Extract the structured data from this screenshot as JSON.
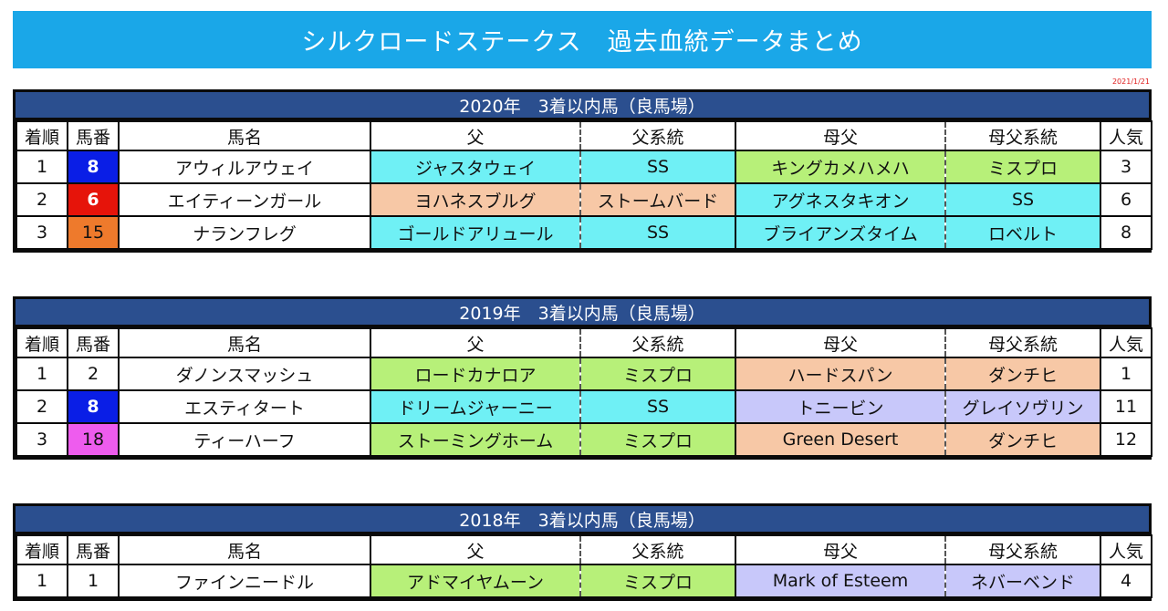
{
  "title": "シルクロードステークス　過去血統データまとめ",
  "date": "2021/1/21",
  "headers": [
    "着順",
    "馬番",
    "馬名",
    "父",
    "父系統",
    "母父",
    "母父系統",
    "人気"
  ],
  "blocks": [
    {
      "title": "2020年　3着以内馬（良馬場）",
      "rows": [
        {
          "rank": "1",
          "num": "8",
          "num_color": "blue",
          "name": "アウィルアウェイ",
          "sire": "ジャスタウェイ",
          "sire_line": "SS",
          "sire_color": "cyan",
          "dam_sire": "キングカメハメハ",
          "dam_sire_line": "ミスプロ",
          "dam_color": "green",
          "pop": "3"
        },
        {
          "rank": "2",
          "num": "6",
          "num_color": "red",
          "name": "エイティーンガール",
          "sire": "ヨハネスブルグ",
          "sire_line": "ストームバード",
          "sire_color": "peach",
          "dam_sire": "アグネスタキオン",
          "dam_sire_line": "SS",
          "dam_color": "cyan",
          "pop": "6"
        },
        {
          "rank": "3",
          "num": "15",
          "num_color": "orange",
          "name": "ナランフレグ",
          "sire": "ゴールドアリュール",
          "sire_line": "SS",
          "sire_color": "cyan",
          "dam_sire": "ブライアンズタイム",
          "dam_sire_line": "ロベルト",
          "dam_color": "cyan",
          "pop": "8"
        }
      ]
    },
    {
      "title": "2019年　3着以内馬（良馬場）",
      "rows": [
        {
          "rank": "1",
          "num": "2",
          "num_color": "white",
          "name": "ダノンスマッシュ",
          "sire": "ロードカナロア",
          "sire_line": "ミスプロ",
          "sire_color": "green",
          "dam_sire": "ハードスパン",
          "dam_sire_line": "ダンチヒ",
          "dam_color": "peach",
          "pop": "1"
        },
        {
          "rank": "2",
          "num": "8",
          "num_color": "blue",
          "name": "エスティタート",
          "sire": "ドリームジャーニー",
          "sire_line": "SS",
          "sire_color": "cyan",
          "dam_sire": "トニービン",
          "dam_sire_line": "グレイソヴリン",
          "dam_color": "lav",
          "pop": "11"
        },
        {
          "rank": "3",
          "num": "18",
          "num_color": "pink",
          "name": "ティーハーフ",
          "sire": "ストーミングホーム",
          "sire_line": "ミスプロ",
          "sire_color": "green",
          "dam_sire": "Green Desert",
          "dam_sire_line": "ダンチヒ",
          "dam_color": "peach",
          "pop": "12"
        }
      ]
    },
    {
      "title": "2018年　3着以内馬（良馬場）",
      "rows": [
        {
          "rank": "1",
          "num": "1",
          "num_color": "white",
          "name": "ファインニードル",
          "sire": "アドマイヤムーン",
          "sire_line": "ミスプロ",
          "sire_color": "green",
          "dam_sire": "Mark of Esteem",
          "dam_sire_line": "ネバーベンド",
          "dam_color": "lav",
          "pop": "4"
        }
      ]
    }
  ],
  "colors": {
    "banner": "#1aa7e8",
    "block_title": "#2b4f8f",
    "cyan": "#6ff0f5",
    "peach": "#f7c8a6",
    "green": "#b7f079",
    "lav": "#c8c8fa",
    "blue": "#0a1ee6",
    "red": "#e6140a",
    "orange": "#ee7a2c",
    "pink": "#ee5cee"
  }
}
